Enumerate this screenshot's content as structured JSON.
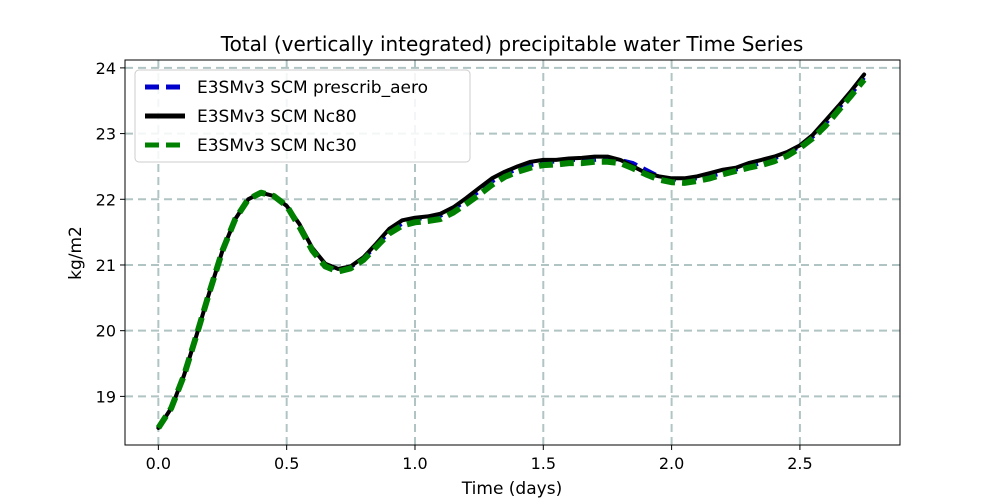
{
  "chart_data": {
    "type": "line",
    "title": "Total (vertically integrated) precipitable water Time Series",
    "xlabel": "Time (days)",
    "ylabel": "kg/m2",
    "xlim": [
      -0.13,
      2.89
    ],
    "ylim": [
      18.26,
      24.12
    ],
    "xticks": [
      "0.0",
      "0.5",
      "1.0",
      "1.5",
      "2.0",
      "2.5"
    ],
    "yticks": [
      "19",
      "20",
      "21",
      "22",
      "23",
      "24"
    ],
    "grid": true,
    "legend_location": "upper-left",
    "x": [
      0.0,
      0.05,
      0.1,
      0.15,
      0.2,
      0.25,
      0.3,
      0.35,
      0.4,
      0.45,
      0.5,
      0.55,
      0.6,
      0.65,
      0.7,
      0.75,
      0.8,
      0.85,
      0.9,
      0.95,
      1.0,
      1.05,
      1.1,
      1.15,
      1.2,
      1.25,
      1.3,
      1.35,
      1.4,
      1.45,
      1.5,
      1.55,
      1.6,
      1.65,
      1.7,
      1.75,
      1.8,
      1.85,
      1.9,
      1.95,
      2.0,
      2.05,
      2.1,
      2.15,
      2.2,
      2.25,
      2.3,
      2.35,
      2.4,
      2.45,
      2.5,
      2.55,
      2.6,
      2.65,
      2.7,
      2.75
    ],
    "series": [
      {
        "name": "E3SMv3 SCM prescrib_aero",
        "color": "#0000cc",
        "style": "dashed",
        "values": [
          18.52,
          18.82,
          19.32,
          19.95,
          20.6,
          21.22,
          21.7,
          22.0,
          22.1,
          22.05,
          21.9,
          21.6,
          21.25,
          21.0,
          20.93,
          20.97,
          21.1,
          21.3,
          21.5,
          21.63,
          21.7,
          21.72,
          21.75,
          21.85,
          21.98,
          22.12,
          22.27,
          22.38,
          22.46,
          22.52,
          22.55,
          22.58,
          22.6,
          22.6,
          22.6,
          22.62,
          22.6,
          22.55,
          22.45,
          22.35,
          22.3,
          22.3,
          22.32,
          22.35,
          22.4,
          22.45,
          22.5,
          22.55,
          22.62,
          22.7,
          22.8,
          22.95,
          23.15,
          23.38,
          23.6,
          23.85
        ]
      },
      {
        "name": "E3SMv3 SCM Nc80",
        "color": "#000000",
        "style": "solid",
        "values": [
          18.52,
          18.82,
          19.32,
          19.95,
          20.6,
          21.22,
          21.7,
          22.0,
          22.1,
          22.05,
          21.9,
          21.62,
          21.26,
          21.02,
          20.94,
          20.98,
          21.12,
          21.33,
          21.55,
          21.68,
          21.72,
          21.74,
          21.78,
          21.88,
          22.02,
          22.17,
          22.32,
          22.42,
          22.5,
          22.57,
          22.6,
          22.6,
          22.62,
          22.63,
          22.65,
          22.65,
          22.6,
          22.5,
          22.4,
          22.35,
          22.32,
          22.32,
          22.35,
          22.4,
          22.45,
          22.48,
          22.55,
          22.6,
          22.65,
          22.72,
          22.82,
          22.98,
          23.2,
          23.42,
          23.65,
          23.9
        ]
      },
      {
        "name": "E3SMv3 SCM Nc30",
        "color": "#008000",
        "style": "dashed",
        "values": [
          18.52,
          18.82,
          19.32,
          19.95,
          20.6,
          21.22,
          21.7,
          22.0,
          22.1,
          22.05,
          21.9,
          21.58,
          21.22,
          20.98,
          20.9,
          20.95,
          21.08,
          21.28,
          21.48,
          21.6,
          21.65,
          21.67,
          21.7,
          21.8,
          21.93,
          22.07,
          22.22,
          22.34,
          22.42,
          22.48,
          22.52,
          22.53,
          22.55,
          22.55,
          22.57,
          22.57,
          22.55,
          22.47,
          22.38,
          22.3,
          22.26,
          22.25,
          22.28,
          22.32,
          22.38,
          22.43,
          22.48,
          22.52,
          22.58,
          22.66,
          22.78,
          22.93,
          23.12,
          23.35,
          23.58,
          23.82
        ]
      }
    ]
  }
}
